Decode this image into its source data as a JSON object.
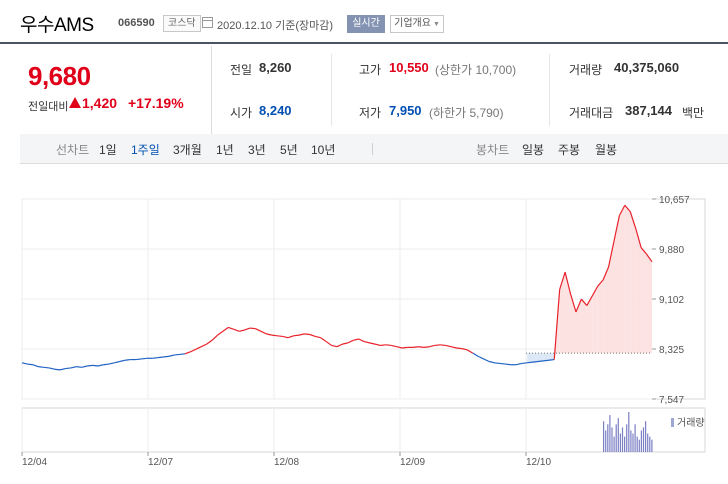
{
  "header": {
    "stock_name": "우수AMS",
    "stock_code": "066590",
    "market_badge": "코스닥",
    "date_text": "2020.12.10 기준(장마감)",
    "realtime_button": "실시간",
    "company_button": "기업개요"
  },
  "price": {
    "current": "9,680",
    "prev_label": "전일대비",
    "diff": "1,420",
    "rate": "+17.19%"
  },
  "stats": {
    "prev_close_label": "전일",
    "prev_close": "8,260",
    "high_label": "고가",
    "high": "10,550",
    "upper_limit": "(상한가 10,700)",
    "volume_label": "거래량",
    "volume": "40,375,060",
    "open_label": "시가",
    "open": "8,240",
    "low_label": "저가",
    "low": "7,950",
    "lower_limit": "(하한가 5,790)",
    "amount_label": "거래대금",
    "amount": "387,144",
    "amount_unit": "백만"
  },
  "toolbar": {
    "line_chart_label": "선차트",
    "periods": [
      "1일",
      "1주일",
      "3개월",
      "1년",
      "3년",
      "5년",
      "10년"
    ],
    "active_period": "1주일",
    "candle_chart_label": "봉차트",
    "candles": [
      "일봉",
      "주봉",
      "월봉"
    ]
  },
  "chart_data": {
    "type": "line",
    "y_ticks": [
      "10,657",
      "9,880",
      "9,102",
      "8,325",
      "7,547"
    ],
    "x_ticks": [
      "12/04",
      "12/07",
      "12/08",
      "12/09",
      "12/10"
    ],
    "reference_line": 8260,
    "volume_label": "거래량",
    "ylim": [
      7547,
      10657
    ],
    "grid": true,
    "colors": {
      "up": "#e8212a",
      "down": "#1f62c4",
      "up_fill": "#fde2e2",
      "down_fill": "#dde8f7"
    },
    "series": [
      {
        "values": [
          8110,
          8090,
          8080,
          8050,
          8040,
          8030,
          8010,
          8000,
          8020,
          8030,
          8050,
          8040,
          8060,
          8070,
          8060,
          8080,
          8090,
          8110,
          8130,
          8150,
          8160,
          8160,
          8170,
          8180,
          8180,
          8190,
          8200,
          8210,
          8230,
          8240,
          8250,
          8280,
          8320,
          8360,
          8400,
          8460,
          8540,
          8600,
          8660,
          8630,
          8600,
          8620,
          8650,
          8640,
          8600,
          8560,
          8540,
          8530,
          8520,
          8500,
          8530,
          8540,
          8560,
          8550,
          8520,
          8500,
          8440,
          8380,
          8360,
          8400,
          8420,
          8460,
          8480,
          8440,
          8420,
          8400,
          8380,
          8390,
          8380,
          8360,
          8340,
          8350,
          8350,
          8360,
          8350,
          8360,
          8380,
          8390,
          8380,
          8360,
          8340,
          8330,
          8310,
          8260,
          8210,
          8170,
          8130,
          8110,
          8100,
          8090,
          8080,
          8080,
          8100,
          8110,
          8120,
          8130,
          8140,
          8150,
          8160,
          9250,
          9520,
          9180,
          8900,
          9100,
          9000,
          9150,
          9300,
          9400,
          9600,
          10000,
          10400,
          10560,
          10460,
          10200,
          9900,
          9800,
          9680
        ]
      }
    ],
    "volume": [
      1.0,
      0.7,
      0.9,
      1.2,
      0.8,
      0.5,
      0.9,
      1.1,
      0.6,
      0.8,
      0.5,
      0.9,
      1.3,
      0.7,
      0.6,
      0.9,
      0.5,
      0.4,
      0.7,
      0.8,
      1.0,
      0.6,
      0.5,
      0.4
    ]
  }
}
